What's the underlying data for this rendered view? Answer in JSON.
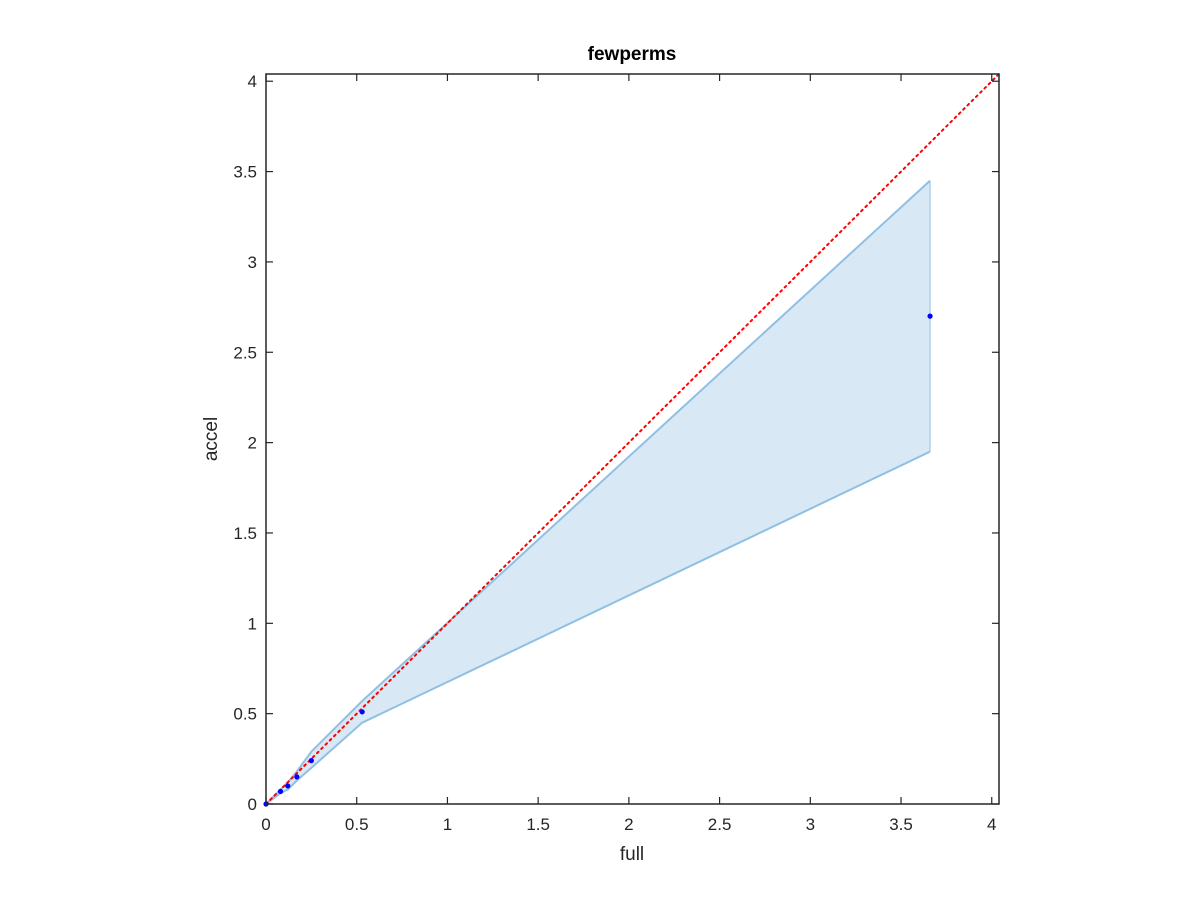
{
  "chart_data": {
    "type": "line",
    "title": "fewperms",
    "xlabel": "full",
    "ylabel": "accel",
    "xlim": [
      0,
      4.04
    ],
    "ylim": [
      0,
      4.04
    ],
    "grid": false,
    "box": true,
    "xticks": [
      0,
      0.5,
      1,
      1.5,
      2,
      2.5,
      3,
      3.5,
      4
    ],
    "xtick_labels": [
      "0",
      "0.5",
      "1",
      "1.5",
      "2",
      "2.5",
      "3",
      "3.5",
      "4"
    ],
    "yticks": [
      0,
      0.5,
      1,
      1.5,
      2,
      2.5,
      3,
      3.5,
      4
    ],
    "ytick_labels": [
      "0",
      "0.5",
      "1",
      "1.5",
      "2",
      "2.5",
      "3",
      "3.5",
      "4"
    ],
    "band": {
      "x": [
        0,
        0.08,
        0.12,
        0.17,
        0.25,
        0.53,
        3.66
      ],
      "upper": [
        0,
        0.08,
        0.12,
        0.18,
        0.29,
        0.57,
        3.45
      ],
      "lower": [
        0,
        0.06,
        0.08,
        0.13,
        0.2,
        0.45,
        1.95
      ],
      "fill_color": "#d9e8f5",
      "edge_color": "#8fc0e3"
    },
    "series": [
      {
        "type": "scatter",
        "x": [
          0,
          0.08,
          0.12,
          0.17,
          0.25,
          0.53,
          3.66
        ],
        "y": [
          0,
          0.07,
          0.1,
          0.15,
          0.24,
          0.51,
          2.7
        ],
        "color": "#0000ff"
      }
    ],
    "reference_line": {
      "x": [
        0,
        4.04
      ],
      "y": [
        0,
        4.04
      ],
      "style": "dotted",
      "color": "#ff0000"
    }
  }
}
